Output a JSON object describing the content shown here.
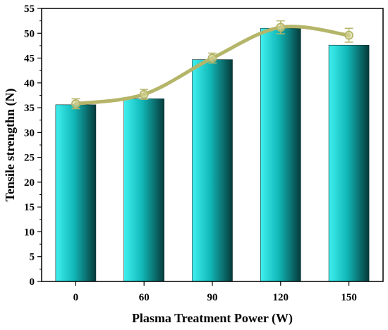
{
  "chart_data": {
    "type": "bar",
    "categories": [
      "0",
      "60",
      "90",
      "120",
      "150"
    ],
    "values": [
      35.6,
      36.8,
      44.7,
      51.0,
      47.6
    ],
    "overlay_line": {
      "type": "line",
      "smooth": true,
      "values": [
        35.8,
        37.7,
        45.0,
        51.2,
        49.6
      ],
      "errors": [
        1.0,
        1.0,
        1.0,
        1.3,
        1.4
      ],
      "color": "#b5b56a"
    },
    "bar_gradient": [
      "#3ff0ef",
      "#12b8b8",
      "#063a3a"
    ],
    "title": "",
    "xlabel": "Plasma Treatment Power (W)",
    "ylabel": "Tensile strengthn (N)",
    "ylim": [
      0,
      55
    ],
    "yticks": [
      "0",
      "5",
      "10",
      "15",
      "20",
      "25",
      "30",
      "35",
      "40",
      "45",
      "50",
      "55"
    ],
    "grid": false
  }
}
